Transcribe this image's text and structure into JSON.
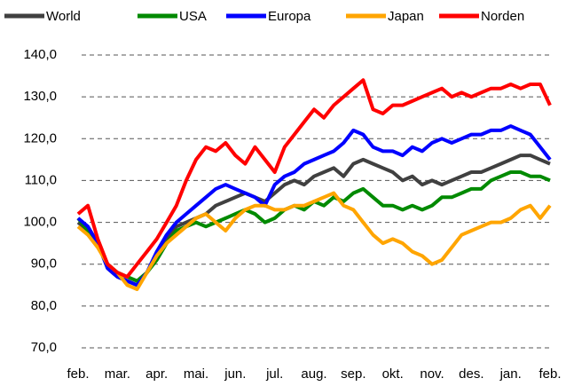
{
  "chart_data": {
    "type": "line",
    "categories": [
      "feb.",
      null,
      null,
      null,
      "mar.",
      null,
      null,
      null,
      "apr.",
      null,
      null,
      null,
      "mai.",
      null,
      null,
      null,
      "jun.",
      null,
      null,
      null,
      "jul.",
      null,
      null,
      null,
      "aug.",
      null,
      null,
      null,
      "sep.",
      null,
      null,
      null,
      "okt.",
      null,
      null,
      null,
      "nov.",
      null,
      null,
      null,
      "des.",
      null,
      null,
      null,
      "jan.",
      null,
      null,
      null,
      "feb."
    ],
    "series": [
      {
        "name": "World",
        "color": "#404040",
        "values": [
          100,
          98,
          95,
          89,
          87,
          86,
          85,
          88,
          92,
          96,
          99,
          100,
          101,
          102,
          104,
          105,
          106,
          107,
          106,
          105,
          107,
          109,
          110,
          109,
          111,
          112,
          113,
          111,
          114,
          115,
          114,
          113,
          112,
          110,
          111,
          109,
          110,
          109,
          110,
          111,
          112,
          112,
          113,
          114,
          115,
          116,
          116,
          115,
          114
        ]
      },
      {
        "name": "USA",
        "color": "#008a00",
        "values": [
          101,
          98,
          95,
          90,
          88,
          87,
          86,
          88,
          91,
          95,
          98,
          99,
          100,
          99,
          100,
          101,
          102,
          103,
          102,
          100,
          101,
          103,
          104,
          103,
          105,
          104,
          106,
          105,
          107,
          108,
          106,
          104,
          104,
          103,
          104,
          103,
          104,
          106,
          106,
          107,
          108,
          108,
          110,
          111,
          112,
          112,
          111,
          111,
          110
        ]
      },
      {
        "name": "Europa",
        "color": "#0000ff",
        "values": [
          101,
          99,
          95,
          89,
          87,
          86,
          85,
          88,
          93,
          97,
          100,
          102,
          104,
          106,
          108,
          109,
          108,
          107,
          106,
          104,
          109,
          111,
          112,
          114,
          115,
          116,
          117,
          119,
          122,
          121,
          118,
          117,
          117,
          116,
          118,
          117,
          119,
          120,
          119,
          120,
          121,
          121,
          122,
          122,
          123,
          122,
          121,
          118,
          115
        ]
      },
      {
        "name": "Japan",
        "color": "#ffa500",
        "values": [
          99,
          97,
          94,
          90,
          88,
          85,
          84,
          88,
          92,
          95,
          97,
          99,
          101,
          102,
          100,
          98,
          101,
          103,
          104,
          104,
          103,
          103,
          104,
          104,
          105,
          106,
          107,
          104,
          103,
          100,
          97,
          95,
          96,
          95,
          93,
          92,
          90,
          91,
          94,
          97,
          98,
          99,
          100,
          100,
          101,
          103,
          104,
          101,
          104
        ]
      },
      {
        "name": "Norden",
        "color": "#ff0000",
        "values": [
          102,
          104,
          96,
          90,
          88,
          87,
          90,
          93,
          96,
          100,
          104,
          110,
          115,
          118,
          117,
          119,
          116,
          114,
          118,
          115,
          112,
          118,
          121,
          124,
          127,
          125,
          128,
          130,
          132,
          134,
          127,
          126,
          128,
          128,
          129,
          130,
          131,
          132,
          130,
          131,
          130,
          131,
          132,
          132,
          133,
          132,
          133,
          133,
          128
        ]
      }
    ],
    "ylim": [
      70,
      140
    ],
    "yticks": [
      {
        "value": 70,
        "label": "70,0"
      },
      {
        "value": 80,
        "label": "80,0"
      },
      {
        "value": 90,
        "label": "90,0"
      },
      {
        "value": 100,
        "label": "100,0"
      },
      {
        "value": 110,
        "label": "110,0"
      },
      {
        "value": 120,
        "label": "120,0"
      },
      {
        "value": 130,
        "label": "130,0"
      },
      {
        "value": 140,
        "label": "140,0"
      }
    ],
    "grid": true,
    "legend": "top"
  }
}
